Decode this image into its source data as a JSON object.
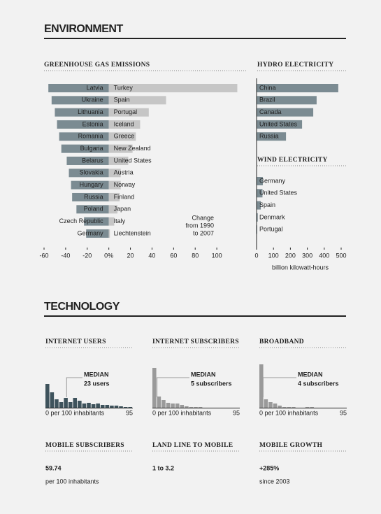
{
  "sections": [
    {
      "title": "ENVIRONMENT"
    },
    {
      "title": "TECHNOLOGY"
    }
  ],
  "chart_data": [
    {
      "type": "diverging_bar",
      "title": "GREENHOUSE GAS EMISSIONS",
      "annotation": [
        "Change",
        "from 1990",
        "to 2007"
      ],
      "decrease": {
        "color": "#7b8b92",
        "categories": [
          "Latvia",
          "Ukraine",
          "Lithuania",
          "Estonia",
          "Romania",
          "Bulgaria",
          "Belarus",
          "Slovakia",
          "Hungary",
          "Russia",
          "Poland",
          "Czech Republic",
          "Germany"
        ],
        "values": [
          -56,
          -53,
          -50,
          -48,
          -46,
          -44,
          -39,
          -37,
          -35,
          -34,
          -30,
          -23,
          -21
        ]
      },
      "increase": {
        "color": "#c6c6c6",
        "categories": [
          "Turkey",
          "Spain",
          "Portugal",
          "Iceland",
          "Greece",
          "New Zealand",
          "United States",
          "Austria",
          "Norway",
          "Finland",
          "Japan",
          "Italy",
          "Liechtenstein"
        ],
        "values": [
          119,
          53,
          37,
          29,
          25,
          22,
          18,
          11,
          11,
          10,
          8,
          5,
          1
        ]
      },
      "xlim": [
        -60,
        120
      ],
      "xticks": [
        -60,
        -40,
        -20,
        {
          "value": 0,
          "label": "0%"
        },
        20,
        40,
        60,
        80,
        100
      ]
    },
    {
      "type": "hbar",
      "title": "HYDRO ELECTRICITY",
      "color": "#7b8b92",
      "categories": [
        "China",
        "Brazil",
        "Canada",
        "United States",
        "Russia"
      ],
      "values": [
        483,
        355,
        335,
        269,
        174
      ],
      "xlim": [
        0,
        500
      ]
    },
    {
      "type": "hbar",
      "title": "WIND ELECTRICITY",
      "color": "#7b8b92",
      "categories": [
        "Germany",
        "United States",
        "Spain",
        "Denmark",
        "Portugal"
      ],
      "values": [
        37,
        35,
        25,
        7,
        4
      ],
      "xlim": [
        0,
        500
      ],
      "xticks": [
        0,
        100,
        200,
        300,
        400,
        500
      ],
      "x_label": "billion kilowatt-hours"
    },
    {
      "type": "histogram",
      "title": "INTERNET USERS",
      "color": "#3e535c",
      "median_color": "#4d6872",
      "bins": [
        0,
        5,
        10,
        15,
        20,
        25,
        30,
        35,
        40,
        45,
        50,
        55,
        60,
        65,
        70,
        75,
        80,
        85,
        90,
        95
      ],
      "counts": [
        34,
        22,
        12,
        8,
        14,
        8,
        14,
        10,
        6,
        7,
        5,
        6,
        4,
        4,
        3,
        3,
        2,
        1,
        1
      ],
      "xlim": [
        0,
        95
      ],
      "ylim": [
        0,
        65
      ],
      "xticks": [
        {
          "value": 0,
          "label": "0 per 100 inhabitants"
        },
        95
      ],
      "median": 23,
      "median_title": "MEDIAN",
      "median_label": "23 users"
    },
    {
      "type": "histogram",
      "title": "INTERNET SUBSCRIBERS",
      "color": "#9a9a9a",
      "median_color": "#222222",
      "bins": [
        0,
        5,
        10,
        15,
        20,
        25,
        30,
        35,
        40,
        45,
        50,
        55,
        60,
        65,
        70,
        75,
        80,
        85,
        90,
        95
      ],
      "counts": [
        57,
        16,
        11,
        7,
        6,
        6,
        4,
        2,
        1,
        1,
        1,
        0,
        0,
        0,
        0,
        0,
        0,
        0,
        0
      ],
      "xlim": [
        0,
        95
      ],
      "ylim": [
        0,
        65
      ],
      "xticks": [
        {
          "value": 0,
          "label": "0 per 100 inhabitants"
        },
        95
      ],
      "median": 5,
      "median_title": "MEDIAN",
      "median_label": "5 subscribers"
    },
    {
      "type": "histogram",
      "title": "BROADBAND",
      "color": "#9a9a9a",
      "median_color": "#222222",
      "bins": [
        0,
        5,
        10,
        15,
        20,
        25,
        30,
        35,
        40,
        45,
        50,
        55,
        60,
        65,
        70,
        75,
        80,
        85,
        90,
        95
      ],
      "counts": [
        62,
        12,
        8,
        6,
        3,
        1,
        1,
        1,
        0,
        0,
        1,
        1,
        0,
        0,
        0,
        0,
        0,
        0,
        0
      ],
      "xlim": [
        0,
        95
      ],
      "ylim": [
        0,
        65
      ],
      "xticks": [
        {
          "value": 0,
          "label": "0 per 100 inhabitants"
        },
        95
      ],
      "median": 4,
      "median_title": "MEDIAN",
      "median_label": "4 subscribers"
    }
  ],
  "stats": [
    {
      "title": "MOBILE SUBSCRIBERS",
      "value": "59.74",
      "note": "per 100 inhabitants",
      "color": "#3e535c"
    },
    {
      "title": "LAND LINE TO MOBILE",
      "value": "1 to 3.2",
      "color": "#666666"
    },
    {
      "title": "MOBILE GROWTH",
      "value": "+285%",
      "note": "since 2003",
      "color": "#4d6872"
    }
  ]
}
